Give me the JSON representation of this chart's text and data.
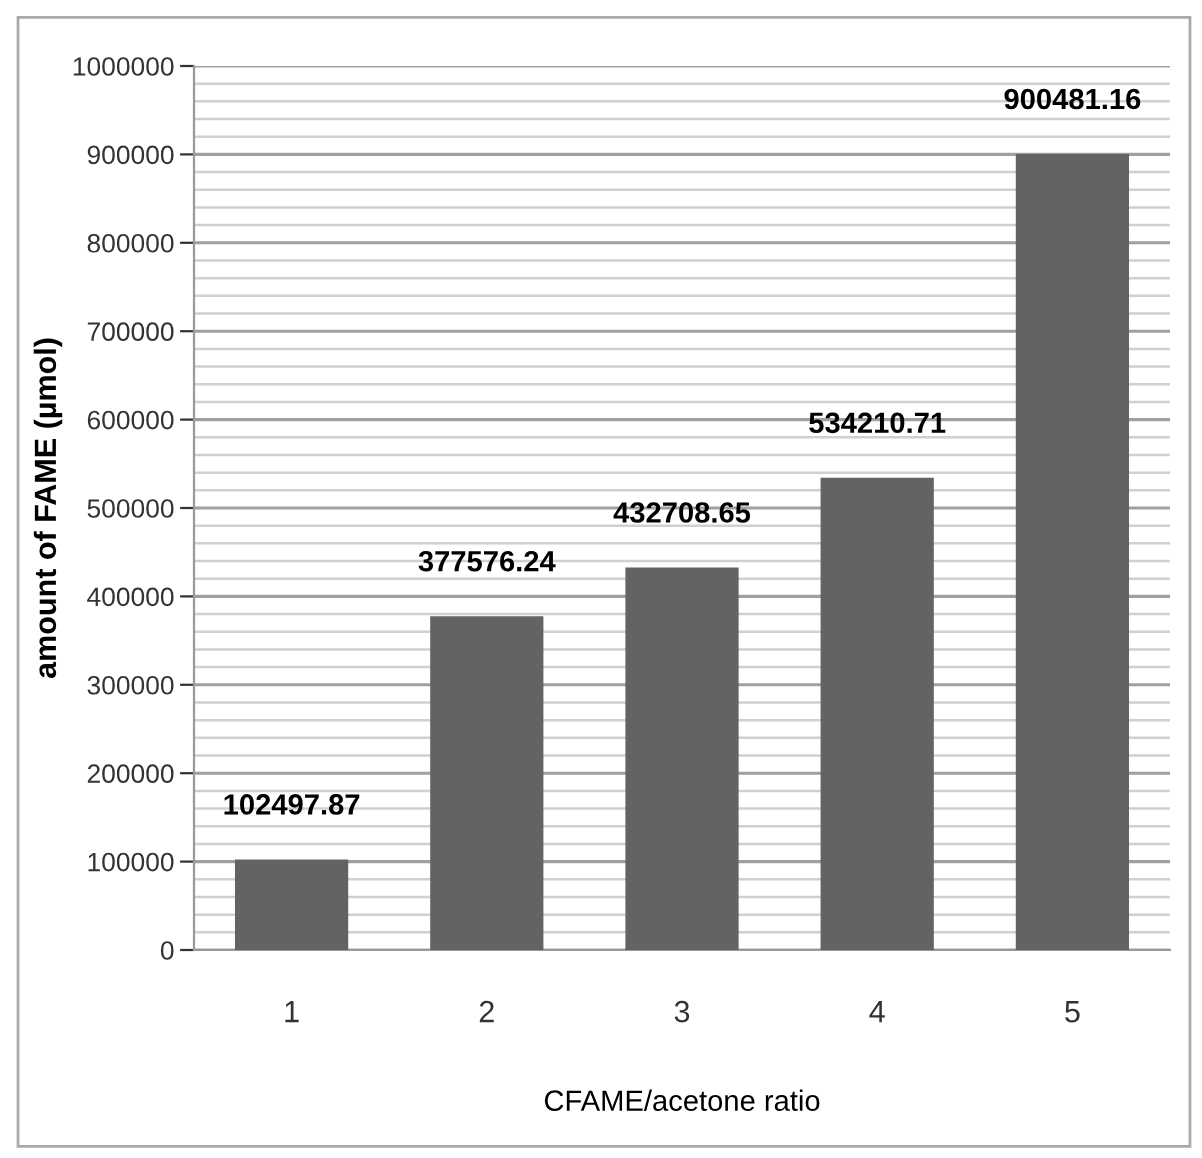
{
  "chart_data": {
    "type": "bar",
    "xlabel": "CFAME/acetone ratio",
    "ylabel": "amount of FAME (µmol)",
    "categories": [
      "1",
      "2",
      "3",
      "4",
      "5"
    ],
    "values": [
      102497.87,
      377576.24,
      432708.65,
      534210.71,
      900481.16
    ],
    "color": "#636363",
    "ylim": [
      0,
      1000000
    ],
    "yticks": [
      0,
      100000,
      200000,
      300000,
      400000,
      500000,
      600000,
      700000,
      800000,
      900000,
      1000000
    ],
    "grid": "y",
    "data_labels": true
  }
}
